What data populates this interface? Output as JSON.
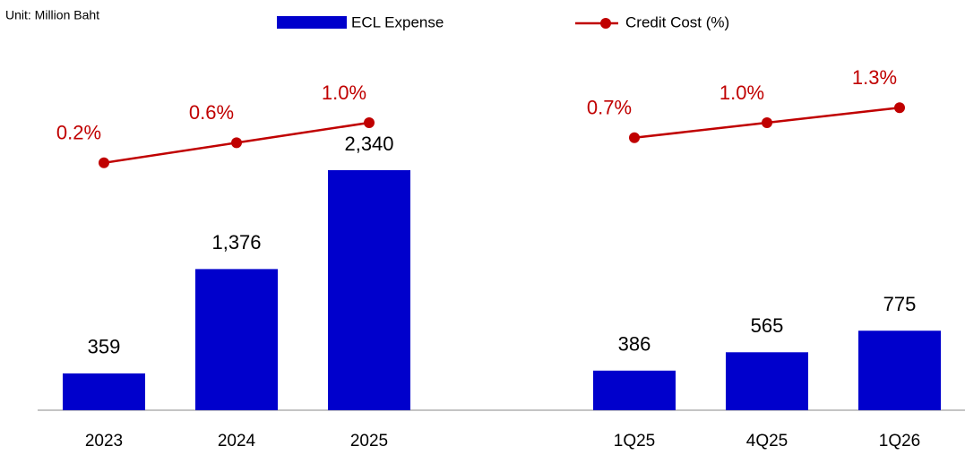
{
  "chart_data": {
    "type": "bar_line",
    "subtitle": "Unit: Million Baht",
    "categories": [
      "2023",
      "2024",
      "2025",
      null,
      "1Q25",
      "4Q25",
      "1Q26"
    ],
    "series": [
      {
        "name": "ECL Expense",
        "type": "bar",
        "color": "#0000cc",
        "values": [
          359,
          1376,
          2340,
          null,
          386,
          565,
          775
        ],
        "value_labels": [
          "359",
          "1,376",
          "2,340",
          null,
          "386",
          "565",
          "775"
        ]
      },
      {
        "name": "Credit Cost (%)",
        "type": "line",
        "axis": "y2",
        "color": "#c00000",
        "values": [
          0.2,
          0.6,
          1.0,
          null,
          0.7,
          1.0,
          1.3
        ],
        "value_labels": [
          "0.2%",
          "0.6%",
          "1.0%",
          null,
          "0.7%",
          "1.0%",
          "1.3%"
        ]
      }
    ],
    "legend": "top"
  }
}
